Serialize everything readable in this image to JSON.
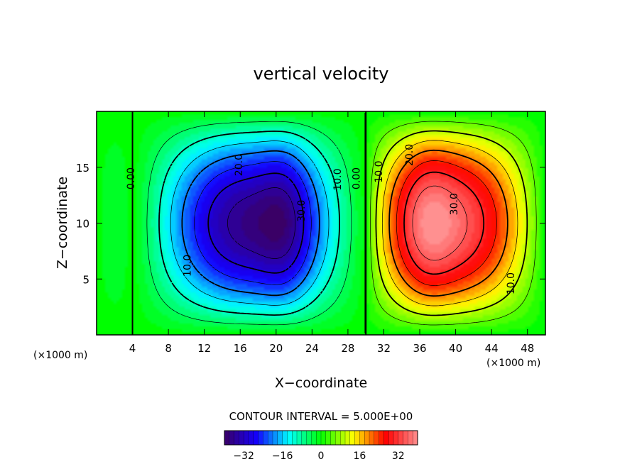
{
  "chart_data": {
    "type": "heatmap",
    "title": "vertical velocity",
    "xlabel": "X−coordinate",
    "ylabel": "Z−coordinate",
    "x_unit_left": "(×1000 m)",
    "x_unit_right": "(×1000 m)",
    "xlim": [
      0,
      50
    ],
    "ylim": [
      0,
      20
    ],
    "x_ticks": [
      4,
      8,
      12,
      16,
      20,
      24,
      28,
      32,
      36,
      40,
      44,
      48
    ],
    "y_ticks": [
      5,
      10,
      15
    ],
    "contour_interval_text": "CONTOUR INTERVAL = 5.000E+00",
    "contour_interval": 5,
    "contour_labels": [
      {
        "text": "0.00",
        "x": 4.2,
        "y": 14.0
      },
      {
        "text": "10.0",
        "x": 10.5,
        "y": 6.2
      },
      {
        "text": "20.0",
        "x": 16.2,
        "y": 15.2
      },
      {
        "text": "30.0",
        "x": 23.2,
        "y": 11.1
      },
      {
        "text": "10.0",
        "x": 27.2,
        "y": 13.9
      },
      {
        "text": "0.00",
        "x": 29.3,
        "y": 14.0
      },
      {
        "text": "10.0",
        "x": 31.8,
        "y": 14.6
      },
      {
        "text": "20.0",
        "x": 35.2,
        "y": 16.1
      },
      {
        "text": "30.0",
        "x": 40.2,
        "y": 11.7
      },
      {
        "text": "10.0",
        "x": 46.5,
        "y": 4.6
      }
    ],
    "field_extrema": {
      "min": {
        "value": -37,
        "x": 21.5,
        "y": 10
      },
      "max": {
        "value": 37,
        "x": 36.5,
        "y": 10
      },
      "zero_lines_x": [
        4,
        30
      ]
    },
    "colorbar": {
      "range": [
        -40,
        40
      ],
      "ticks": [
        -32,
        -16,
        0,
        16,
        32
      ],
      "tick_labels": [
        "−32",
        "−16",
        "0",
        "16",
        "32"
      ]
    },
    "colormap": [
      "#3a0066",
      "#1400ff",
      "#00ffff",
      "#00ff00",
      "#ffff00",
      "#ff0000",
      "#ff9090"
    ]
  }
}
